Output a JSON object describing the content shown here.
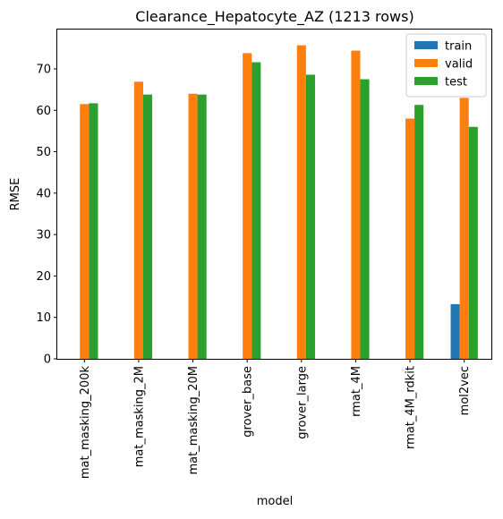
{
  "chart_data": {
    "type": "bar",
    "title": "Clearance_Hepatocyte_AZ (1213 rows)",
    "xlabel": "model",
    "ylabel": "RMSE",
    "categories": [
      "mat_masking_200k",
      "mat_masking_2M",
      "mat_masking_20M",
      "grover_base",
      "grover_large",
      "rmat_4M",
      "rmat_4M_rdkit",
      "mol2vec"
    ],
    "series": [
      {
        "name": "train",
        "color": "#1f77b4",
        "values": [
          null,
          null,
          null,
          null,
          null,
          null,
          null,
          13.2
        ]
      },
      {
        "name": "valid",
        "color": "#ff7f0e",
        "values": [
          61.5,
          66.9,
          64.0,
          73.8,
          75.7,
          74.4,
          58.0,
          63.0
        ]
      },
      {
        "name": "test",
        "color": "#2ca02c",
        "values": [
          61.7,
          63.8,
          63.8,
          71.6,
          68.6,
          67.5,
          61.3,
          56.0
        ]
      }
    ],
    "ylim": [
      0,
      79.5
    ],
    "yticks": [
      0,
      10,
      20,
      30,
      40,
      50,
      60,
      70
    ],
    "grid": false,
    "legend": "top-right"
  }
}
